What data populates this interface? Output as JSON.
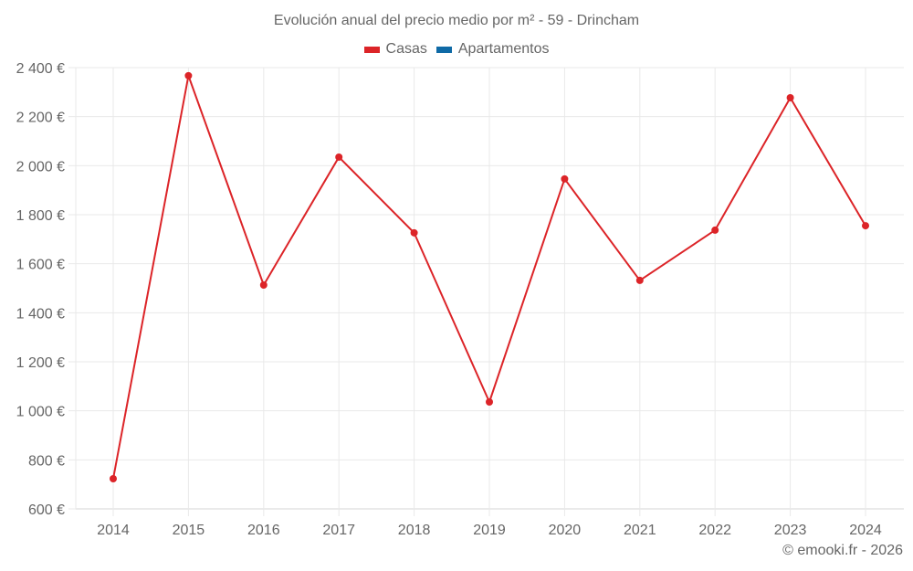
{
  "title": "Evolución anual del precio medio por m² - 59 - Drincham",
  "legend": [
    {
      "label": "Casas",
      "color": "#dc2428"
    },
    {
      "label": "Apartamentos",
      "color": "#0f6aa6"
    }
  ],
  "footer": "© emooki.fr - 2026",
  "colors": {
    "casas": "#dc2428",
    "apartamentos": "#0f6aa6",
    "grid": "#e9e9e9",
    "axis": "#d6d6d6",
    "text": "#666666"
  },
  "chart_data": {
    "type": "line",
    "title": "Evolución anual del precio medio por m² - 59 - Drincham",
    "xlabel": "",
    "ylabel": "",
    "categories": [
      "2014",
      "2015",
      "2016",
      "2017",
      "2018",
      "2019",
      "2020",
      "2021",
      "2022",
      "2023",
      "2024"
    ],
    "series": [
      {
        "name": "Casas",
        "color": "#dc2428",
        "values": [
          723,
          2367,
          1513,
          2035,
          1726,
          1036,
          1946,
          1532,
          1737,
          2277,
          1755
        ]
      },
      {
        "name": "Apartamentos",
        "color": "#0f6aa6",
        "values": []
      }
    ],
    "ylim": [
      600,
      2400
    ],
    "yticks": [
      600,
      800,
      1000,
      1200,
      1400,
      1600,
      1800,
      2000,
      2200,
      2400
    ],
    "ytick_labels": [
      "600 €",
      "800 €",
      "1 000 €",
      "1 200 €",
      "1 400 €",
      "1 600 €",
      "1 800 €",
      "2 000 €",
      "2 200 €",
      "2 400 €"
    ],
    "grid": true,
    "legend_position": "top"
  }
}
